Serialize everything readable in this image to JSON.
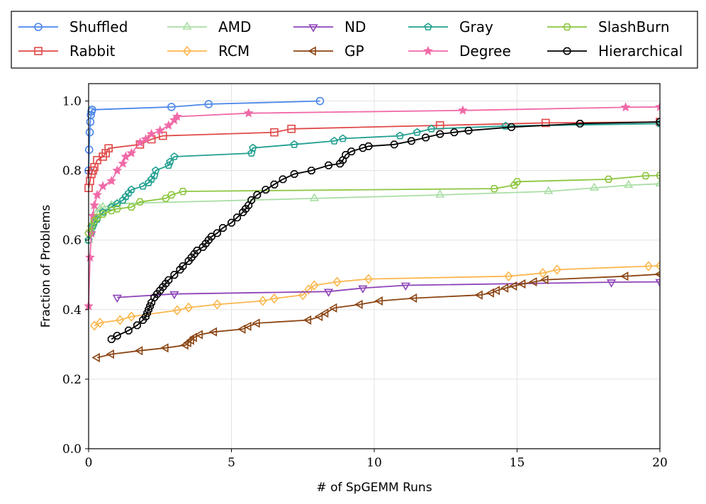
{
  "chart_data": {
    "type": "line",
    "title": "",
    "xlabel": "# of SpGEMM Runs",
    "ylabel": "Fraction of Problems",
    "xlim": [
      0,
      20
    ],
    "ylim": [
      0,
      1.05
    ],
    "xticks": [
      0,
      5,
      10,
      15,
      20
    ],
    "xtick_labels": [
      "0",
      "5",
      "10",
      "15",
      "20"
    ],
    "yticks": [
      0.0,
      0.2,
      0.4,
      0.6,
      0.8,
      1.0
    ],
    "ytick_labels": [
      "0.0",
      "0.2",
      "0.4",
      "0.6",
      "0.8",
      "1.0"
    ],
    "grid": true,
    "legend_position": "top (outside, 5 columns)",
    "series": [
      {
        "name": "Shuffled",
        "color": "#4a86e8",
        "marker": "circle",
        "x": [
          0.0,
          0.02,
          0.04,
          0.06,
          0.08,
          0.1,
          0.12,
          2.9,
          4.2,
          8.1
        ],
        "y": [
          0.8,
          0.86,
          0.91,
          0.94,
          0.96,
          0.97,
          0.975,
          0.983,
          0.991,
          1.0
        ]
      },
      {
        "name": "Rabbit",
        "color": "#e04848",
        "marker": "square",
        "x": [
          0.0,
          0.05,
          0.1,
          0.15,
          0.2,
          0.3,
          0.5,
          0.6,
          0.7,
          1.8,
          2.2,
          2.6,
          6.5,
          7.1,
          12.3,
          16.0,
          20.0
        ],
        "y": [
          0.75,
          0.77,
          0.79,
          0.8,
          0.81,
          0.83,
          0.84,
          0.85,
          0.864,
          0.875,
          0.89,
          0.9,
          0.91,
          0.92,
          0.93,
          0.937,
          0.94
        ]
      },
      {
        "name": "AMD",
        "color": "#a8dea4",
        "marker": "triangle-up",
        "x": [
          0.0,
          0.1,
          0.2,
          0.3,
          0.4,
          0.5,
          0.8,
          1.0,
          7.9,
          12.3,
          16.1,
          17.7,
          18.9,
          20.0
        ],
        "y": [
          0.6,
          0.63,
          0.66,
          0.68,
          0.69,
          0.695,
          0.7,
          0.705,
          0.72,
          0.73,
          0.74,
          0.75,
          0.758,
          0.762
        ]
      },
      {
        "name": "RCM",
        "color": "#fbb74e",
        "marker": "diamond",
        "x": [
          0.2,
          0.4,
          1.1,
          1.5,
          3.1,
          3.5,
          4.5,
          6.1,
          6.5,
          7.5,
          7.7,
          7.9,
          8.7,
          9.8,
          14.7,
          15.9,
          16.4,
          19.6,
          20.0
        ],
        "y": [
          0.354,
          0.362,
          0.37,
          0.38,
          0.398,
          0.406,
          0.415,
          0.425,
          0.432,
          0.442,
          0.458,
          0.47,
          0.48,
          0.488,
          0.496,
          0.505,
          0.515,
          0.525,
          0.526
        ]
      },
      {
        "name": "ND",
        "color": "#8e44b8",
        "marker": "triangle-down",
        "x": [
          1.0,
          3.0,
          8.4,
          9.6,
          11.1,
          18.3,
          20.0
        ],
        "y": [
          0.435,
          0.445,
          0.452,
          0.462,
          0.47,
          0.479,
          0.48
        ]
      },
      {
        "name": "GP",
        "color": "#8b4513",
        "marker": "triangle-left",
        "x": [
          0.3,
          0.8,
          1.8,
          2.7,
          3.4,
          3.5,
          3.6,
          3.7,
          3.9,
          4.4,
          5.4,
          5.6,
          5.9,
          7.7,
          8.1,
          8.3,
          8.6,
          9.5,
          10.2,
          11.4,
          13.7,
          14.1,
          14.3,
          14.6,
          14.9,
          15.2,
          15.6,
          16.0,
          18.8,
          20.0
        ],
        "y": [
          0.262,
          0.272,
          0.282,
          0.29,
          0.298,
          0.305,
          0.312,
          0.32,
          0.328,
          0.336,
          0.344,
          0.352,
          0.361,
          0.37,
          0.38,
          0.39,
          0.405,
          0.415,
          0.425,
          0.433,
          0.442,
          0.448,
          0.455,
          0.462,
          0.468,
          0.474,
          0.48,
          0.486,
          0.496,
          0.502
        ]
      },
      {
        "name": "Gray",
        "color": "#21a090",
        "marker": "pentagon",
        "x": [
          0.0,
          0.1,
          0.15,
          0.2,
          0.3,
          0.5,
          0.8,
          1.0,
          1.2,
          1.3,
          1.4,
          1.5,
          1.9,
          2.1,
          2.2,
          2.3,
          2.35,
          2.8,
          2.85,
          3.0,
          5.7,
          5.75,
          7.2,
          8.6,
          8.9,
          10.9,
          11.5,
          12.0,
          14.6,
          20.0
        ],
        "y": [
          0.6,
          0.62,
          0.64,
          0.65,
          0.66,
          0.68,
          0.695,
          0.705,
          0.715,
          0.725,
          0.735,
          0.745,
          0.755,
          0.765,
          0.775,
          0.785,
          0.8,
          0.815,
          0.825,
          0.84,
          0.85,
          0.865,
          0.875,
          0.885,
          0.892,
          0.9,
          0.91,
          0.92,
          0.928,
          0.935
        ]
      },
      {
        "name": "Degree",
        "color": "#f06aa8",
        "marker": "star",
        "x": [
          0.0,
          0.05,
          0.1,
          0.15,
          0.2,
          0.3,
          0.5,
          0.8,
          1.0,
          1.2,
          1.3,
          1.5,
          1.8,
          2.0,
          2.2,
          2.5,
          2.8,
          3.0,
          3.1,
          5.6,
          13.1,
          18.8,
          20.0
        ],
        "y": [
          0.41,
          0.55,
          0.62,
          0.67,
          0.7,
          0.73,
          0.755,
          0.77,
          0.8,
          0.82,
          0.84,
          0.85,
          0.88,
          0.89,
          0.905,
          0.915,
          0.93,
          0.945,
          0.955,
          0.965,
          0.973,
          0.982,
          0.983
        ]
      },
      {
        "name": "SlashBurn",
        "color": "#8cc63f",
        "marker": "hexagon",
        "x": [
          0.0,
          0.1,
          0.2,
          0.3,
          0.5,
          0.8,
          1.0,
          1.5,
          1.8,
          2.7,
          2.9,
          3.3,
          14.2,
          14.9,
          15.0,
          18.2,
          19.5,
          20.0
        ],
        "y": [
          0.62,
          0.64,
          0.655,
          0.665,
          0.675,
          0.685,
          0.69,
          0.695,
          0.71,
          0.72,
          0.73,
          0.74,
          0.748,
          0.758,
          0.768,
          0.775,
          0.785,
          0.786
        ]
      },
      {
        "name": "Hierarchical",
        "color": "#000000",
        "marker": "octagon",
        "x": [
          0.8,
          1.0,
          1.4,
          1.7,
          1.9,
          2.0,
          2.05,
          2.1,
          2.15,
          2.2,
          2.3,
          2.4,
          2.5,
          2.6,
          2.7,
          2.8,
          3.0,
          3.2,
          3.3,
          3.5,
          3.6,
          3.7,
          3.8,
          4.0,
          4.1,
          4.2,
          4.3,
          4.5,
          4.7,
          5.0,
          5.2,
          5.4,
          5.5,
          5.6,
          5.7,
          5.9,
          6.2,
          6.5,
          6.8,
          7.2,
          7.8,
          8.4,
          8.8,
          8.9,
          9.0,
          9.2,
          9.6,
          9.8,
          10.7,
          11.3,
          11.8,
          12.3,
          12.8,
          13.3,
          14.8,
          17.2,
          20.0
        ],
        "y": [
          0.315,
          0.325,
          0.34,
          0.355,
          0.37,
          0.38,
          0.39,
          0.4,
          0.41,
          0.42,
          0.435,
          0.445,
          0.455,
          0.465,
          0.475,
          0.485,
          0.5,
          0.515,
          0.525,
          0.54,
          0.55,
          0.56,
          0.57,
          0.58,
          0.59,
          0.6,
          0.61,
          0.62,
          0.635,
          0.65,
          0.665,
          0.68,
          0.69,
          0.7,
          0.715,
          0.73,
          0.745,
          0.76,
          0.775,
          0.79,
          0.8,
          0.815,
          0.82,
          0.83,
          0.845,
          0.855,
          0.865,
          0.87,
          0.875,
          0.885,
          0.895,
          0.905,
          0.91,
          0.915,
          0.925,
          0.935,
          0.94
        ]
      }
    ]
  }
}
